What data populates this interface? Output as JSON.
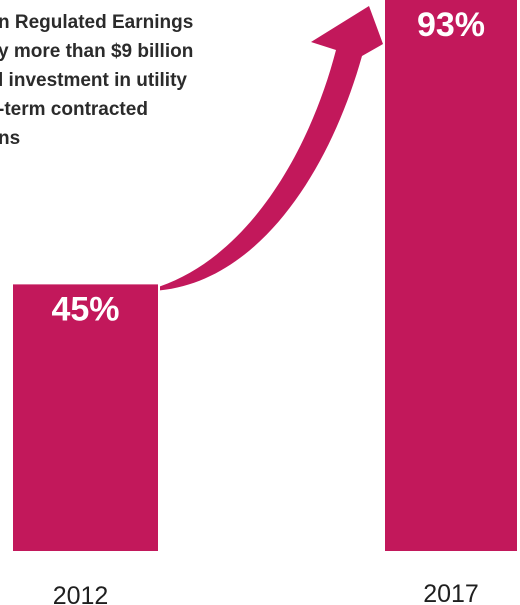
{
  "chart_data": {
    "type": "bar",
    "categories": [
      "2012",
      "2017"
    ],
    "values": [
      45,
      93
    ],
    "value_labels": [
      "45%",
      "93%"
    ],
    "ylim": [
      0,
      100
    ],
    "grid": false,
    "annotation": "n Regulated Earnings\ny more than $9 billion\nl investment in utility\n-term contracted\nns"
  },
  "colors": {
    "bar": "#c2185b",
    "arrow": "#c2185b",
    "text": "#2b2b2b"
  }
}
